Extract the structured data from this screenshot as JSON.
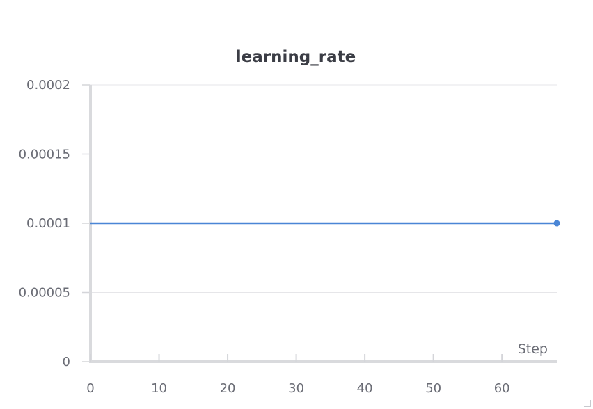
{
  "panel": {
    "title": "learning_rate"
  },
  "chart_data": {
    "type": "line",
    "title": "learning_rate",
    "xlabel": "Step",
    "ylabel": "",
    "xlim": [
      0,
      68
    ],
    "ylim": [
      0,
      0.0002
    ],
    "x_ticks": [
      0,
      10,
      20,
      30,
      40,
      50,
      60
    ],
    "y_ticks": [
      0,
      5e-05,
      0.0001,
      0.00015,
      0.0002
    ],
    "x_tick_labels": [
      "0",
      "10",
      "20",
      "30",
      "40",
      "50",
      "60"
    ],
    "y_tick_labels": [
      "0",
      "0.00005",
      "0.0001",
      "0.00015",
      "0.0002"
    ],
    "grid": true,
    "series": [
      {
        "color": "#4a86d6",
        "x": [
          0,
          68
        ],
        "y": [
          0.0001,
          0.0001
        ]
      }
    ]
  }
}
